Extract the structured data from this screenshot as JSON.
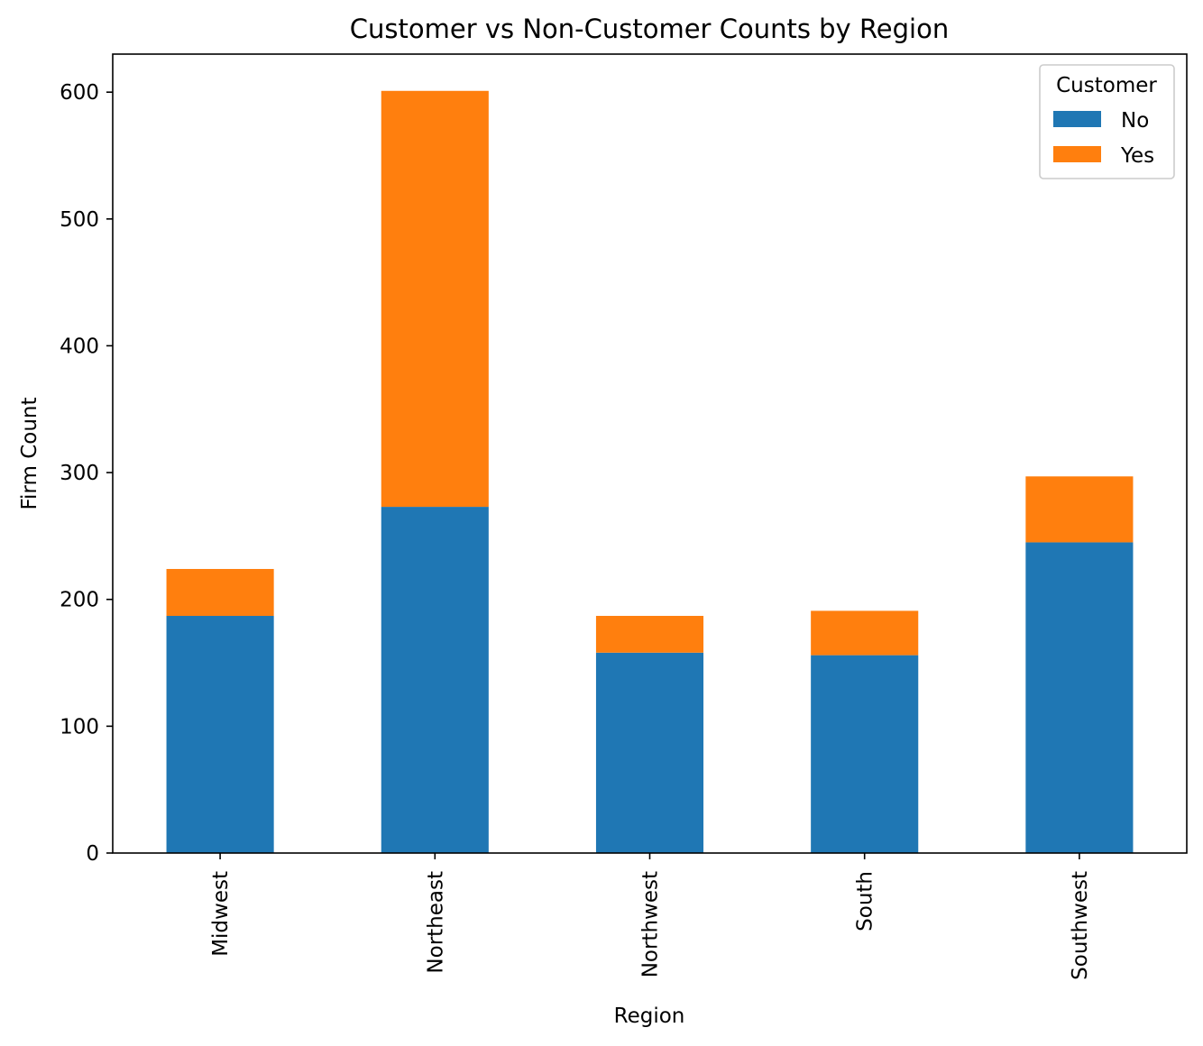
{
  "chart_data": {
    "type": "bar",
    "stacked": true,
    "title": "Customer vs Non-Customer Counts by Region",
    "xlabel": "Region",
    "ylabel": "Firm Count",
    "categories": [
      "Midwest",
      "Northeast",
      "Northwest",
      "South",
      "Southwest"
    ],
    "series": [
      {
        "name": "No",
        "color": "#1f77b4",
        "values": [
          187,
          273,
          158,
          156,
          245
        ]
      },
      {
        "name": "Yes",
        "color": "#ff7f0e",
        "values": [
          37,
          328,
          29,
          35,
          52
        ]
      }
    ],
    "ylim": [
      0,
      630
    ],
    "yticks": [
      0,
      100,
      200,
      300,
      400,
      500,
      600
    ],
    "grid": false,
    "legend": {
      "title": "Customer",
      "position": "top-right"
    }
  }
}
